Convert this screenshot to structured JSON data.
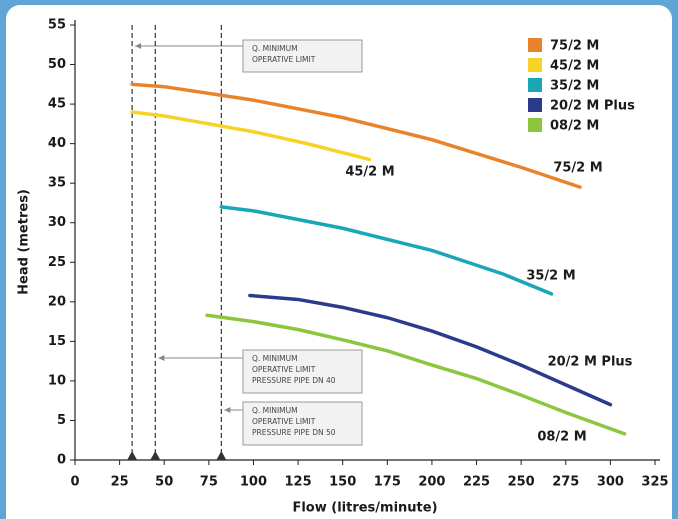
{
  "chart_data": {
    "type": "line",
    "x_label": "Flow (litres/minute)",
    "y_label": "Head (metres)",
    "xlim": [
      0,
      325
    ],
    "xticks": [
      0,
      25,
      50,
      75,
      100,
      125,
      150,
      175,
      200,
      225,
      250,
      275,
      300,
      325
    ],
    "ylim": [
      0,
      55
    ],
    "yticks": [
      0,
      5,
      10,
      15,
      20,
      25,
      30,
      35,
      40,
      45,
      50,
      55
    ],
    "grid": false,
    "legend": "upper right",
    "series": [
      {
        "name": "75/2 M",
        "color": "#e8832a",
        "x": [
          32,
          50,
          100,
          150,
          200,
          250,
          283
        ],
        "values": [
          47.5,
          47.2,
          45.5,
          43.3,
          40.5,
          37,
          34.5
        ]
      },
      {
        "name": "45/2 M",
        "color": "#f5d327",
        "x": [
          32,
          50,
          100,
          130,
          165
        ],
        "values": [
          44,
          43.5,
          41.5,
          40,
          38
        ]
      },
      {
        "name": "35/2 M",
        "color": "#1aa6b7",
        "x": [
          82,
          100,
          150,
          200,
          240,
          267
        ],
        "values": [
          32,
          31.5,
          29.3,
          26.5,
          23.5,
          21
        ]
      },
      {
        "name": "20/2 M Plus",
        "color": "#2b3a8c",
        "x": [
          98,
          125,
          150,
          175,
          200,
          225,
          250,
          275,
          300
        ],
        "values": [
          20.8,
          20.3,
          19.3,
          18,
          16.3,
          14.3,
          12,
          9.5,
          7
        ]
      },
      {
        "name": "08/2 M",
        "color": "#8cc63f",
        "x": [
          74,
          100,
          125,
          150,
          175,
          200,
          225,
          250,
          275,
          308
        ],
        "values": [
          18.3,
          17.5,
          16.5,
          15.2,
          13.8,
          12,
          10.3,
          8.2,
          6,
          3.3
        ]
      }
    ],
    "limits": [
      {
        "x": 32,
        "lines": [
          "Q. MINIMUM",
          "OPERATIVE LIMIT"
        ]
      },
      {
        "x": 45,
        "lines": [
          "Q. MINIMUM",
          "OPERATIVE LIMIT",
          "PRESSURE PIPE DN 40"
        ]
      },
      {
        "x": 82,
        "lines": [
          "Q. MINIMUM",
          "OPERATIVE LIMIT",
          "PRESSURE PIPE DN 50"
        ]
      }
    ]
  }
}
